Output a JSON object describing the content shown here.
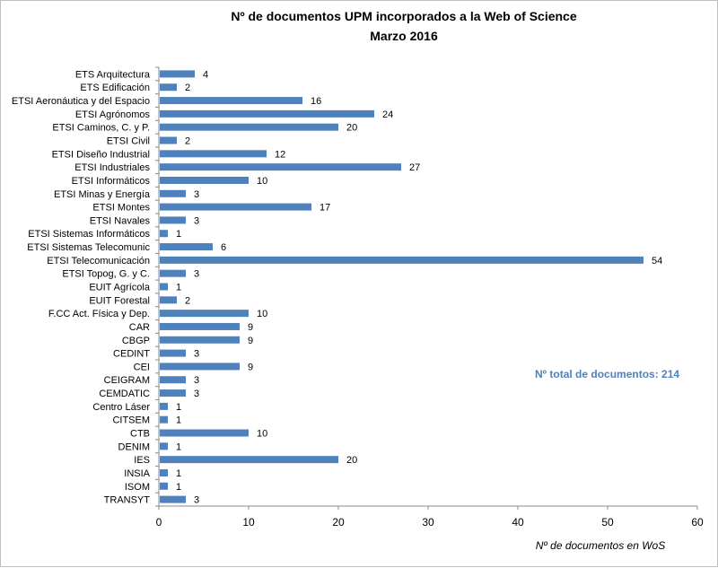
{
  "chart_data": {
    "type": "bar",
    "orientation": "horizontal",
    "title": "Nº de documentos UPM incorporados a la Web of Science",
    "subtitle": "Marzo 2016",
    "xlabel": "Nº de documentos en WoS",
    "ylabel": "",
    "xlim": [
      0,
      60
    ],
    "xticks": [
      0,
      10,
      20,
      30,
      40,
      50,
      60
    ],
    "grid": false,
    "bar_color": "#4f81bd",
    "annotation": {
      "text": "Nº total de documentos:  214",
      "color": "#4f81bd"
    },
    "categories": [
      "ETS Arquitectura",
      "ETS Edificación",
      "ETSI Aeronáutica y del Espacio",
      "ETSI Agrónomos",
      "ETSI Caminos, C. y P.",
      "ETSI Civil",
      "ETSI Diseño Industrial",
      "ETSI Industriales",
      "ETSI Informáticos",
      "ETSI Minas y Energía",
      "ETSI Montes",
      "ETSI Navales",
      "ETSI Sistemas Informáticos",
      "ETSI Sistemas Telecomunic",
      "ETSI Telecomunicación",
      "ETSI Topog, G. y C.",
      "EUIT Agrícola",
      "EUIT Forestal",
      "F.CC Act. Física y Dep.",
      "CAR",
      "CBGP",
      "CEDINT",
      "CEI",
      "CEIGRAM",
      "CEMDATIC",
      "Centro Láser",
      "CITSEM",
      "CTB",
      "DENIM",
      "IES",
      "INSIA",
      "ISOM",
      "TRANSYT"
    ],
    "values": [
      4,
      2,
      16,
      24,
      20,
      2,
      12,
      27,
      10,
      3,
      17,
      3,
      1,
      6,
      54,
      3,
      1,
      2,
      10,
      9,
      9,
      3,
      9,
      3,
      3,
      1,
      1,
      10,
      1,
      20,
      1,
      1,
      3
    ]
  }
}
